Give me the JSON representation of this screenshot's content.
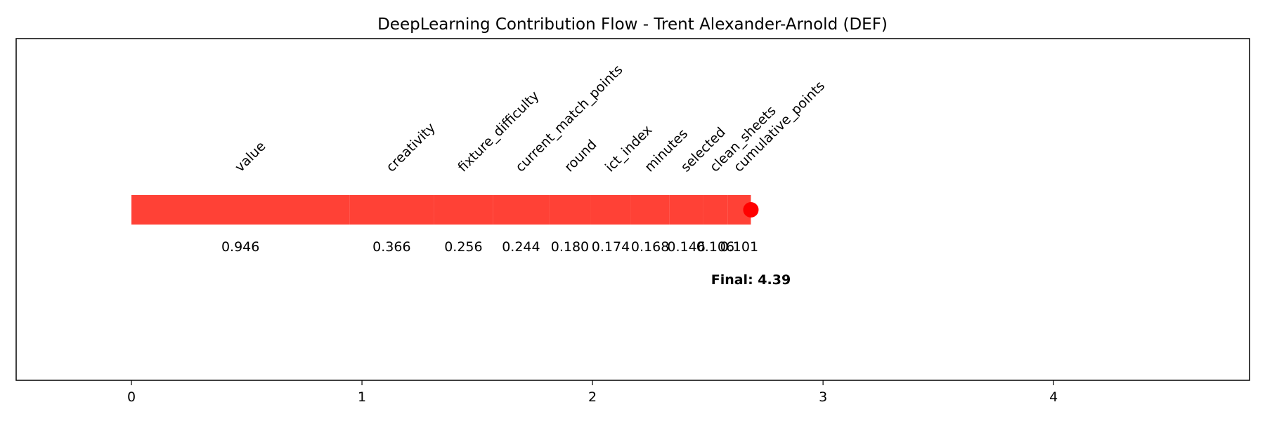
{
  "chart_data": {
    "type": "bar",
    "title": "DeepLearning Contribution Flow - Trent Alexander-Arnold (DEF)",
    "xlabel": "",
    "ylabel": "",
    "xlim": [
      -0.5,
      4.85
    ],
    "x_ticks": [
      0,
      1,
      2,
      3,
      4
    ],
    "x_tick_labels": [
      "0",
      "1",
      "2",
      "3",
      "4"
    ],
    "grid": false,
    "bar_color": "#ff4136",
    "endpoint_color": "#ff0000",
    "contributions": [
      {
        "feature": "value",
        "value": 0.946,
        "label": "0.946"
      },
      {
        "feature": "creativity",
        "value": 0.366,
        "label": "0.366"
      },
      {
        "feature": "fixture_difficulty",
        "value": 0.256,
        "label": "0.256"
      },
      {
        "feature": "current_match_points",
        "value": 0.244,
        "label": "0.244"
      },
      {
        "feature": "round",
        "value": 0.18,
        "label": "0.180"
      },
      {
        "feature": "ict_index",
        "value": 0.174,
        "label": "0.174"
      },
      {
        "feature": "minutes",
        "value": 0.168,
        "label": "0.168"
      },
      {
        "feature": "selected",
        "value": 0.146,
        "label": "0.146"
      },
      {
        "feature": "clean_sheets",
        "value": 0.106,
        "label": "0.106"
      },
      {
        "feature": "cumulative_points",
        "value": 0.101,
        "label": "0.101"
      }
    ],
    "bar_end": 2.687,
    "final_label": "Final: 4.39"
  }
}
